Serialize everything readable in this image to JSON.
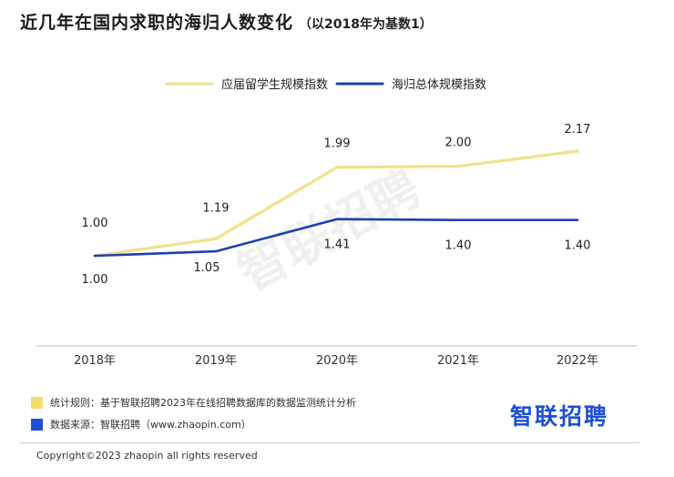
{
  "title": "近几年在国内求职的海归人数变化",
  "subtitle": "（以2018年为基数1）",
  "chart_data": {
    "type": "line",
    "categories": [
      "2018年",
      "2019年",
      "2020年",
      "2021年",
      "2022年"
    ],
    "series": [
      {
        "name": "海归总体规模指数",
        "color": "#1f3fae",
        "values": [
          1.0,
          1.05,
          1.41,
          1.4,
          1.4
        ],
        "labels": [
          "1.00",
          "1.05",
          "1.41",
          "1.40",
          "1.40"
        ]
      },
      {
        "name": "应届留学生规模指数",
        "color": "#f0e28a",
        "values": [
          1.0,
          1.19,
          1.99,
          2.0,
          2.17
        ],
        "labels": [
          "1.00",
          "1.19",
          "1.99",
          "2.00",
          "2.17"
        ]
      }
    ],
    "legend_position": "top",
    "grid": false,
    "watermark": "智联招聘"
  },
  "notes": {
    "rule_color": "#f0dc6e",
    "rule": "统计规则：基于智联招聘2023年在线招聘数据库的数据监测统计分析",
    "source_color": "#1e4fd6",
    "source": "数据来源：智联招聘（www.zhaopin.com）"
  },
  "brand": "智联招聘",
  "copyright": "Copyright©2023 zhaopin all rights reserved"
}
